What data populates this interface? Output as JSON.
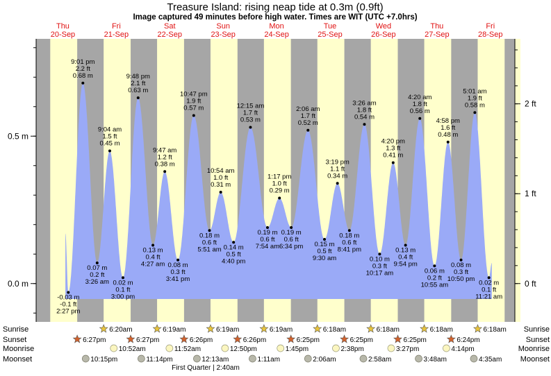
{
  "header": {
    "title": "Treasure Island: rising  neap tide at 0.3m (0.9ft)",
    "subtitle": "Image captured 49 minutes before high water. Times are WIT (UTC +7.0hrs)"
  },
  "colors": {
    "tide_fill": "#9aaaf7",
    "day_bg": "#ffffcc",
    "night_bg": "#a6a6a6",
    "date_text": "#e01010",
    "moon_phase_text": "#000000"
  },
  "chart_data": {
    "type": "area",
    "ylabel": "",
    "xlabel": "",
    "y_units_left": "m",
    "y_units_right": "ft",
    "ylim_m": [
      -0.13,
      0.83
    ],
    "x_domain_hours_from_sep20_midnight": [
      0,
      215
    ],
    "left_axis_ticks": [
      {
        "value": 0.0,
        "label": "0.0 m"
      },
      {
        "value": 0.5,
        "label": "0.5 m"
      }
    ],
    "right_axis_ticks": [
      {
        "value": 0.0,
        "label": "0 ft"
      },
      {
        "value": 0.3048,
        "label": "1 ft"
      },
      {
        "value": 0.6096,
        "label": "2 ft"
      }
    ],
    "days": [
      {
        "weekday": "Thu",
        "date": "20-Sep"
      },
      {
        "weekday": "Fri",
        "date": "21-Sep"
      },
      {
        "weekday": "Sat",
        "date": "22-Sep"
      },
      {
        "weekday": "Sun",
        "date": "23-Sep"
      },
      {
        "weekday": "Mon",
        "date": "24-Sep"
      },
      {
        "weekday": "Tue",
        "date": "25-Sep"
      },
      {
        "weekday": "Wed",
        "date": "26-Sep"
      },
      {
        "weekday": "Thu",
        "date": "27-Sep"
      },
      {
        "weekday": "Fri",
        "date": "28-Sep"
      }
    ],
    "tides": [
      {
        "type": "low",
        "time": "2:27 pm",
        "ft": "-0.1 ft",
        "m": "-0.03 m",
        "value": -0.03,
        "h": 14.45
      },
      {
        "type": "high",
        "time": "9:01 pm",
        "ft": "2.2 ft",
        "m": "0.68 m",
        "value": 0.68,
        "h": 21.0
      },
      {
        "type": "low",
        "time": "3:26 am",
        "ft": "0.2 ft",
        "m": "0.07 m",
        "value": 0.07,
        "h": 27.4
      },
      {
        "type": "high",
        "time": "9:04 am",
        "ft": "1.5 ft",
        "m": "0.45 m",
        "value": 0.45,
        "h": 33.07
      },
      {
        "type": "low",
        "time": "3:00 pm",
        "ft": "0.1 ft",
        "m": "0.02 m",
        "value": 0.02,
        "h": 39.0
      },
      {
        "type": "high",
        "time": "9:48 pm",
        "ft": "2.1 ft",
        "m": "0.63 m",
        "value": 0.63,
        "h": 45.8
      },
      {
        "type": "low",
        "time": "4:27 am",
        "ft": "0.4 ft",
        "m": "0.13 m",
        "value": 0.13,
        "h": 52.45
      },
      {
        "type": "high",
        "time": "9:47 am",
        "ft": "1.2 ft",
        "m": "0.38 m",
        "value": 0.38,
        "h": 57.78
      },
      {
        "type": "low",
        "time": "3:41 pm",
        "ft": "0.3 ft",
        "m": "0.08 m",
        "value": 0.08,
        "h": 63.68
      },
      {
        "type": "high",
        "time": "10:47 pm",
        "ft": "1.9 ft",
        "m": "0.57 m",
        "value": 0.57,
        "h": 70.78
      },
      {
        "type": "low",
        "time": "5:51 am",
        "ft": "0.6 ft",
        "m": "0.18 m",
        "value": 0.18,
        "h": 77.85
      },
      {
        "type": "high",
        "time": "10:54 am",
        "ft": "1.0 ft",
        "m": "0.31 m",
        "value": 0.31,
        "h": 82.9
      },
      {
        "type": "low",
        "time": "4:40 pm",
        "ft": "0.5 ft",
        "m": "0.14 m",
        "value": 0.14,
        "h": 88.67
      },
      {
        "type": "high",
        "time": "12:15 am",
        "ft": "1.7 ft",
        "m": "0.53 m",
        "value": 0.53,
        "h": 96.25
      },
      {
        "type": "low",
        "time": "7:54 am",
        "ft": "0.6 ft",
        "m": "0.19 m",
        "value": 0.19,
        "h": 103.9
      },
      {
        "type": "high",
        "time": "1:17 pm",
        "ft": "1.0 ft",
        "m": "0.29 m",
        "value": 0.29,
        "h": 109.28
      },
      {
        "type": "low",
        "time": "6:34 pm",
        "ft": "0.6 ft",
        "m": "0.19 m",
        "value": 0.19,
        "h": 114.57
      },
      {
        "type": "high",
        "time": "2:06 am",
        "ft": "1.7 ft",
        "m": "0.52 m",
        "value": 0.52,
        "h": 122.1
      },
      {
        "type": "low",
        "time": "9:30 am",
        "ft": "0.5 ft",
        "m": "0.15 m",
        "value": 0.15,
        "h": 129.5
      },
      {
        "type": "high",
        "time": "3:19 pm",
        "ft": "1.1 ft",
        "m": "0.34 m",
        "value": 0.34,
        "h": 135.32
      },
      {
        "type": "low",
        "time": "8:41 pm",
        "ft": "0.6 ft",
        "m": "0.18 m",
        "value": 0.18,
        "h": 140.68
      },
      {
        "type": "high",
        "time": "3:26 am",
        "ft": "1.8 ft",
        "m": "0.54 m",
        "value": 0.54,
        "h": 147.43
      },
      {
        "type": "low",
        "time": "10:17 am",
        "ft": "0.3 ft",
        "m": "0.10 m",
        "value": 0.1,
        "h": 154.28
      },
      {
        "type": "high",
        "time": "4:20 pm",
        "ft": "1.3 ft",
        "m": "0.41 m",
        "value": 0.41,
        "h": 160.33
      },
      {
        "type": "low",
        "time": "9:54 pm",
        "ft": "0.4 ft",
        "m": "0.13 m",
        "value": 0.13,
        "h": 165.9
      },
      {
        "type": "high",
        "time": "4:20 am",
        "ft": "1.8 ft",
        "m": "0.56 m",
        "value": 0.56,
        "h": 172.33
      },
      {
        "type": "low",
        "time": "10:55 am",
        "ft": "0.2 ft",
        "m": "0.06 m",
        "value": 0.06,
        "h": 178.92
      },
      {
        "type": "high",
        "time": "4:58 pm",
        "ft": "1.6 ft",
        "m": "0.48 m",
        "value": 0.48,
        "h": 184.97
      },
      {
        "type": "low",
        "time": "10:50 pm",
        "ft": "0.3 ft",
        "m": "0.08 m",
        "value": 0.08,
        "h": 190.83
      },
      {
        "type": "high",
        "time": "5:01 am",
        "ft": "1.9 ft",
        "m": "0.58 m",
        "value": 0.58,
        "h": 197.02
      },
      {
        "type": "low",
        "time": "11:21 am",
        "ft": "0.1 ft",
        "m": "0.02 m",
        "value": 0.02,
        "h": 203.35
      }
    ],
    "sunrise": [
      "6:20am",
      "6:19am",
      "6:19am",
      "6:19am",
      "6:18am",
      "6:18am",
      "6:18am",
      "6:18am"
    ],
    "sunset": [
      "6:27pm",
      "6:27pm",
      "6:26pm",
      "6:26pm",
      "6:25pm",
      "6:25pm",
      "6:25pm",
      "6:24pm"
    ],
    "moonrise": [
      "10:52am",
      "11:52am",
      "12:50pm",
      "1:45pm",
      "2:38pm",
      "3:27pm",
      "4:14pm"
    ],
    "moonset": [
      "10:15pm",
      "11:14pm",
      "12:13am",
      "1:11am",
      "2:06am",
      "2:58am",
      "3:48am",
      "4:35am"
    ],
    "moon_phase": "First Quarter | 2:40am",
    "row_labels": {
      "sunrise": "Sunrise",
      "sunset": "Sunset",
      "moonrise": "Moonrise",
      "moonset": "Moonset"
    }
  }
}
